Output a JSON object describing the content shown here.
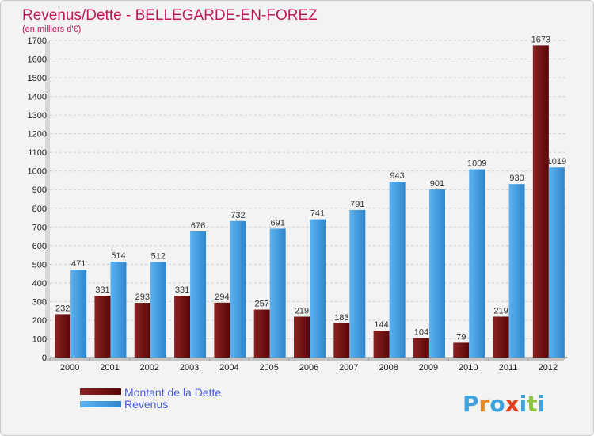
{
  "chart_data": {
    "type": "bar",
    "title": "Revenus/Dette - BELLEGARDE-EN-FOREZ",
    "subtitle": "(en milliers d'€)",
    "categories": [
      "2000",
      "2001",
      "2002",
      "2003",
      "2004",
      "2005",
      "2006",
      "2007",
      "2008",
      "2009",
      "2010",
      "2011",
      "2012"
    ],
    "series": [
      {
        "name": "Montant de la Dette",
        "color": "#7a1212",
        "values": [
          232,
          331,
          293,
          331,
          294,
          257,
          219,
          183,
          144,
          104,
          79,
          219,
          1673
        ]
      },
      {
        "name": "Revenus",
        "color": "#4aa3e6",
        "values": [
          471,
          514,
          512,
          676,
          732,
          691,
          741,
          791,
          943,
          901,
          1009,
          930,
          1019
        ]
      }
    ],
    "y_ticks": [
      0,
      100,
      200,
      300,
      400,
      500,
      600,
      700,
      800,
      900,
      1000,
      1100,
      1200,
      1300,
      1400,
      1500,
      1600,
      1700
    ],
    "ylim": [
      0,
      1700
    ],
    "grid": true,
    "legend_position": "bottom-left"
  },
  "logo": {
    "letters": [
      {
        "ch": "P",
        "color": "#3fa2dd"
      },
      {
        "ch": "r",
        "color": "#e58a1f"
      },
      {
        "ch": "o",
        "color": "#3fa2dd"
      },
      {
        "ch": "x",
        "color": "#e0401f"
      },
      {
        "ch": "i",
        "color": "#3fa2dd"
      },
      {
        "ch": "t",
        "color": "#8cc63f"
      },
      {
        "ch": "i",
        "color": "#3fa2dd"
      }
    ]
  }
}
